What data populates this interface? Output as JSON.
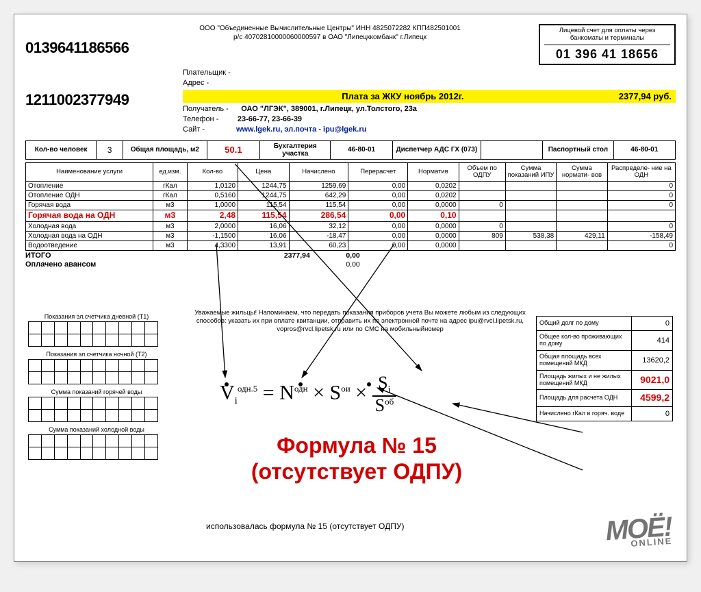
{
  "company": {
    "line1": "ООО \"Объединенные Вычислительные Центры\" ИНН 4825072282 КПП482501001",
    "line2": "р/с 40702810000060000597 в ОАО \"Липецккомбанк\" г.Липецк"
  },
  "accountBox": {
    "title": "Лицевой счет для оплаты через банкоматы и терминалы",
    "number": "01 396 41 18656"
  },
  "barcode1": "0139641186566",
  "barcode2": "1211002377949",
  "payer": {
    "payerLabel": "Плательщик -",
    "addrLabel": "Адрес -",
    "recipientLabel": "Получатель -",
    "recipient": "ОАО \"ЛГЭК\", 389001, г.Липецк, ул.Толстого, 23а",
    "phoneLabel": "Телефон -",
    "phone": "23-66-77, 23-66-39",
    "siteLabel": "Сайт -",
    "site": "www.lgek.ru, эл.почта - ipu@lgek.ru"
  },
  "highlight": {
    "title": "Плата за ЖКУ ноябрь 2012г.",
    "amount": "2377,94 руб."
  },
  "summary": {
    "cols": [
      "Кол-во человек",
      "3",
      "Общая площадь, м2",
      "50.1",
      "Бухгалтерия участка",
      "46-80-01",
      "Диспетчер АДС ГХ (073)",
      "",
      "Паспортный стол",
      "46-80-01"
    ]
  },
  "services": {
    "headers": [
      "Наименование услуги",
      "ед.изм.",
      "Кол-во",
      "Цена",
      "Начислено",
      "Перерасчет",
      "Норматив",
      "Объем по ОДПУ",
      "Сумма показаний ИПУ",
      "Сумма нормати- вов",
      "Распределе- ние на ОДН"
    ],
    "rows": [
      {
        "n": "Отопление",
        "u": "гКал",
        "q": "1,0120",
        "p": "1244,75",
        "a": "1259,69",
        "r": "0,00",
        "nm": "0,0202",
        "v1": "",
        "v2": "",
        "v3": "",
        "v4": "0"
      },
      {
        "n": "Отопление ОДН",
        "u": "гКал",
        "q": "0,5160",
        "p": "1244,75",
        "a": "642,29",
        "r": "0,00",
        "nm": "0,0202",
        "v1": "",
        "v2": "",
        "v3": "",
        "v4": "0"
      },
      {
        "n": "Горячая вода",
        "u": "м3",
        "q": "1,0000",
        "p": "115,54",
        "a": "115,54",
        "r": "0,00",
        "nm": "0,0000",
        "v1": "0",
        "v2": "",
        "v3": "",
        "v4": "0"
      },
      {
        "hl": true,
        "n": "Горячая вода на ОДН",
        "u": "м3",
        "q": "2,48",
        "p": "115,54",
        "a": "286,54",
        "r": "0,00",
        "nm": "0,10",
        "v1": "",
        "v2": "",
        "v3": "",
        "v4": ""
      },
      {
        "n": "Холодная вода",
        "u": "м3",
        "q": "2,0000",
        "p": "16,06",
        "a": "32,12",
        "r": "0,00",
        "nm": "0,0000",
        "v1": "0",
        "v2": "",
        "v3": "",
        "v4": "0"
      },
      {
        "n": "Холодная вода на ОДН",
        "u": "м3",
        "q": "-1,1500",
        "p": "16,06",
        "a": "-18,47",
        "r": "0,00",
        "nm": "0,0000",
        "v1": "809",
        "v2": "538,38",
        "v3": "429,11",
        "v4": "-158,49"
      },
      {
        "n": "Водоотведение",
        "u": "м3",
        "q": "4,3300",
        "p": "13,91",
        "a": "60,23",
        "r": "0,00",
        "nm": "0,0000",
        "v1": "",
        "v2": "",
        "v3": "",
        "v4": "0"
      }
    ],
    "total": {
      "label": "ИТОГО",
      "a": "2377,94",
      "r": "0,00"
    },
    "advance": {
      "label": "Оплачено авансом",
      "val": "0,00"
    }
  },
  "notice": "Уважаемые жильцы! Напоминаем, что передать показания приборов учета Вы можете любым из следующих способов: указать их при оплате квитанции, отправить их по электронной почте на адрес ipu@rvcl.lipetsk.ru, vopros@rvcl.lipetsk.ru или по СМС на мобильныйномер",
  "meters": [
    "Показания эл.счетчика дневной (Т1)",
    "Показания эл.счетчика ночной (Т2)",
    "Сумма показаний горячей воды",
    "Сумма показаний холодной воды"
  ],
  "rightInfo": [
    {
      "l": "Общий долг по дому",
      "v": "0"
    },
    {
      "l": "Общее кол-во проживающих по дому",
      "v": "414"
    },
    {
      "l": "Общая площадь всех помещений МКД",
      "v": "13620,2"
    },
    {
      "l": "Площадь жилых и не жилых помещений МКД",
      "v": "9021,0",
      "red": true
    },
    {
      "l": "Площадь для расчета ОДН",
      "v": "4599,2",
      "red": true
    },
    {
      "l": "Начислено гКал в горяч. воде",
      "v": "0"
    }
  ],
  "formula": {
    "eq": "V_i^{одн.5} = N^{одн} × S^{ои} × S_i / S^{об}"
  },
  "bigRed1": "Формула № 15",
  "bigRed2": "(отсутствует ОДПУ)",
  "footnote": "использовалась формула № 15 (отсутствует ОДПУ)",
  "watermark": {
    "big": "МОЁ!",
    "sub": "ONLINE"
  },
  "colors": {
    "highlight": "#fff200",
    "red": "#d00000",
    "link": "#0020a0"
  }
}
